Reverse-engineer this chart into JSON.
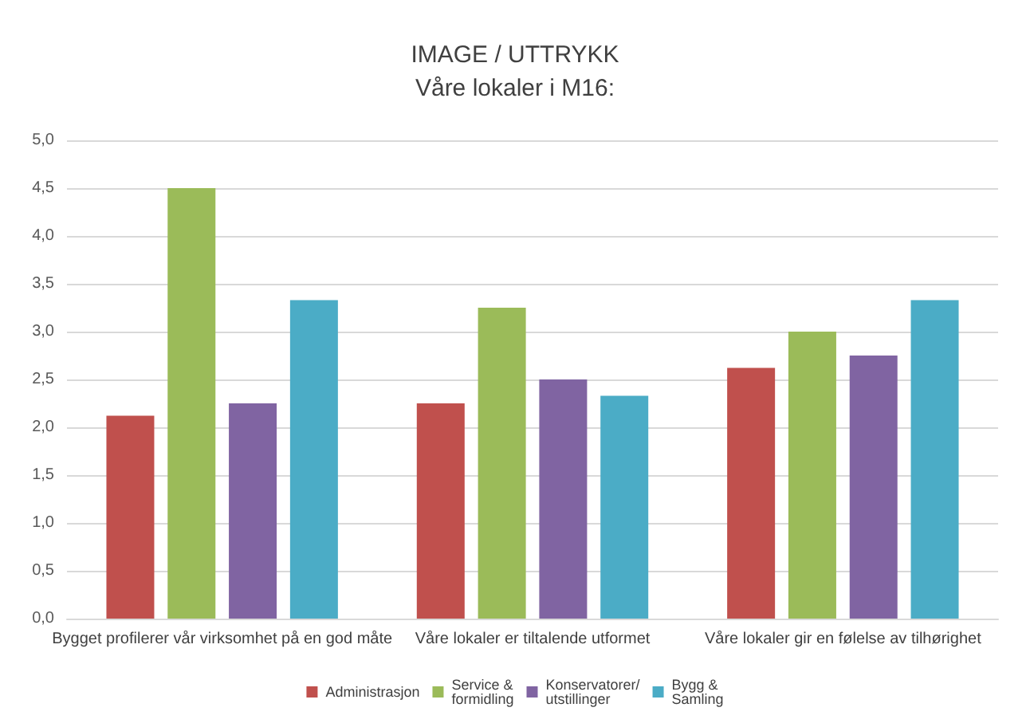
{
  "chart_data": {
    "type": "bar",
    "title": "IMAGE / UTTRYKK",
    "subtitle": "Våre lokaler i M16:",
    "categories": [
      "Bygget profilerer vår virksomhet på en god måte",
      "Våre lokaler er tiltalende utformet",
      "Våre lokaler gir en følelse av tilhørighet"
    ],
    "series": [
      {
        "name": "Administrasjon",
        "color": "#c0504d",
        "values": [
          2.12,
          2.25,
          2.62
        ]
      },
      {
        "name": "Service &\nformidling",
        "color": "#9bbb59",
        "values": [
          4.5,
          3.25,
          3.0
        ]
      },
      {
        "name": "Konservatorer/\nutstillinger",
        "color": "#8064a2",
        "values": [
          2.25,
          2.5,
          2.75
        ]
      },
      {
        "name": "Bygg &\nSamling",
        "color": "#4bacc6",
        "values": [
          3.33,
          2.33,
          3.33
        ]
      }
    ],
    "ylim": [
      0,
      5
    ],
    "yticks": [
      {
        "value": 0,
        "label": "0,0"
      },
      {
        "value": 0.5,
        "label": "0,5"
      },
      {
        "value": 1,
        "label": "1,0"
      },
      {
        "value": 1.5,
        "label": "1,5"
      },
      {
        "value": 2,
        "label": "2,0"
      },
      {
        "value": 2.5,
        "label": "2,5"
      },
      {
        "value": 3,
        "label": "3,0"
      },
      {
        "value": 3.5,
        "label": "3,5"
      },
      {
        "value": 4,
        "label": "4,0"
      },
      {
        "value": 4.5,
        "label": "4,5"
      },
      {
        "value": 5,
        "label": "5,0"
      }
    ],
    "grid": true,
    "legend": "bottom"
  }
}
